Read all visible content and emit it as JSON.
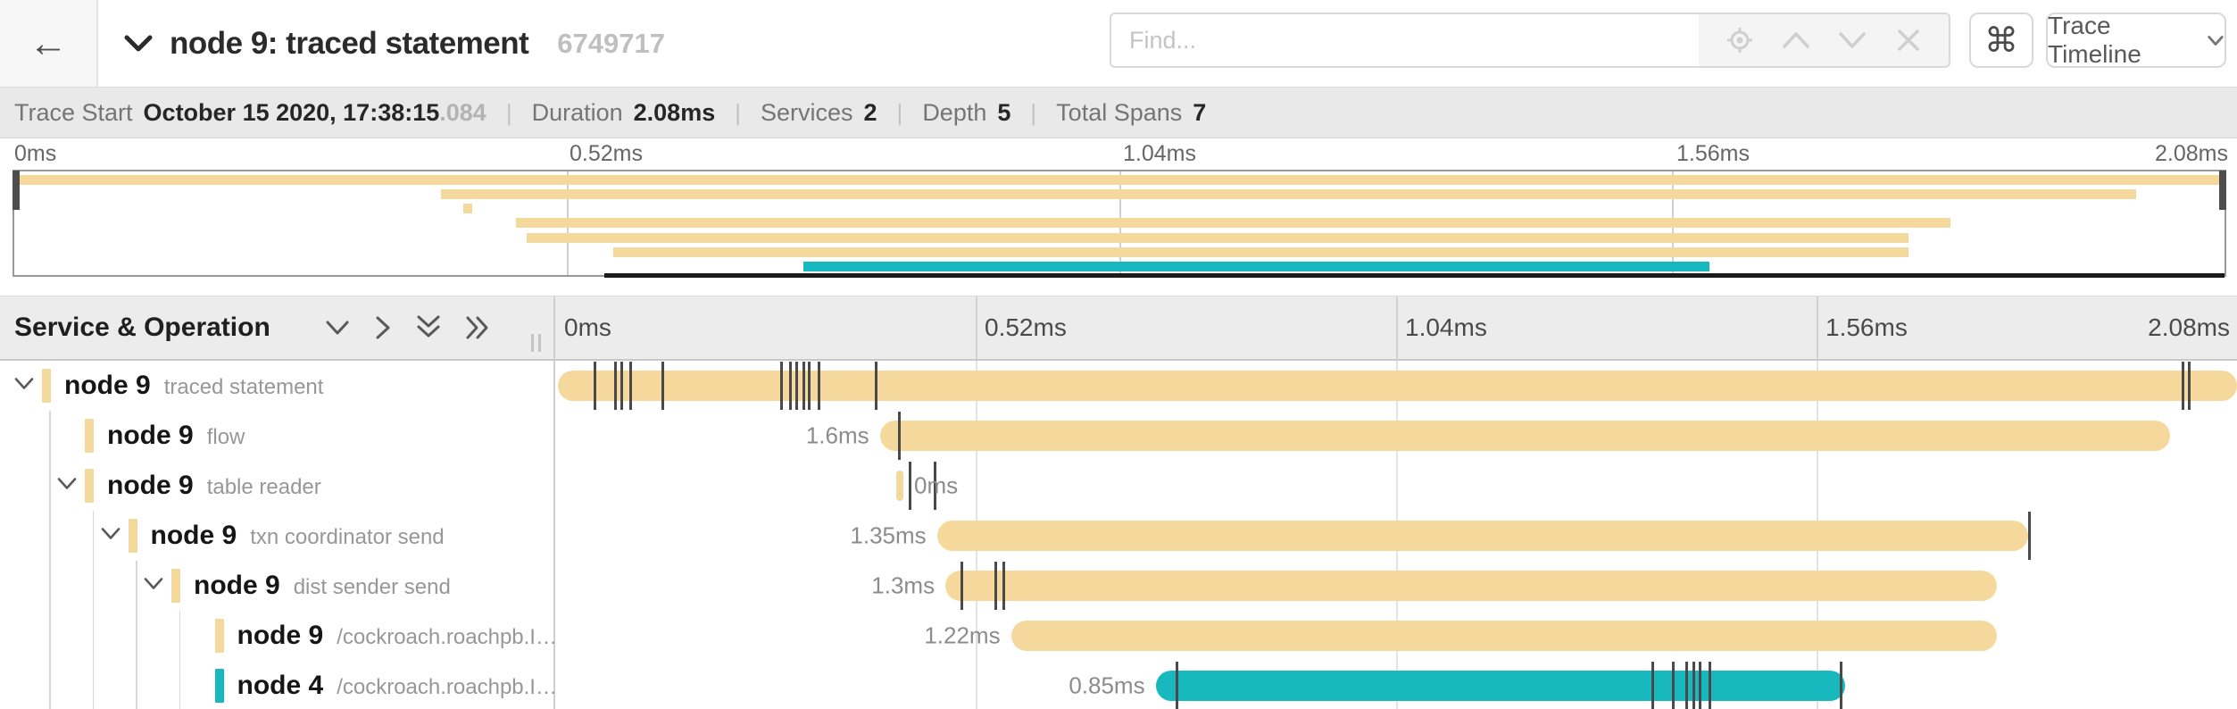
{
  "header": {
    "title": "node 9: traced statement",
    "trace_id_short": "6749717",
    "find_placeholder": "Find...",
    "cmd_shortcut": "⌘",
    "view_selector_label": "Trace Timeline"
  },
  "summary": {
    "items": [
      {
        "label": "Trace Start",
        "value": "October 15 2020, 17:38:15",
        "fraction": ".084"
      },
      {
        "label": "Duration",
        "value": "2.08ms"
      },
      {
        "label": "Services",
        "value": "2"
      },
      {
        "label": "Depth",
        "value": "5"
      },
      {
        "label": "Total Spans",
        "value": "7"
      }
    ]
  },
  "axis": {
    "ticks": [
      "0ms",
      "0.52ms",
      "1.04ms",
      "1.56ms",
      "2.08ms"
    ]
  },
  "colors": {
    "node9_tan": "#F5D89B",
    "node4_teal": "#17B8BE",
    "log_tick": "#4a4a4a"
  },
  "timeline": {
    "left_header": "Service & Operation",
    "header_icons": [
      "collapse-one",
      "expand-one",
      "collapse-all",
      "expand-all"
    ],
    "rows": [
      {
        "service": "node 9",
        "operation": "traced statement",
        "depth": 0,
        "expandable": true,
        "color": "node9_tan",
        "duration_label": "",
        "label_side": "none",
        "start_pct": 0.15,
        "width_pct": 99.85,
        "ticks_pct": [
          2.3,
          3.5,
          3.9,
          4.4,
          6.3,
          13.4,
          13.9,
          14.3,
          14.7,
          15.0,
          15.6,
          19.0,
          96.7,
          97.1
        ]
      },
      {
        "service": "node 9",
        "operation": "flow",
        "depth": 1,
        "expandable": false,
        "color": "node9_tan",
        "duration_label": "1.6ms",
        "label_side": "left",
        "start_pct": 19.3,
        "width_pct": 76.7,
        "ticks_pct": [
          20.4
        ]
      },
      {
        "service": "node 9",
        "operation": "table reader",
        "depth": 1,
        "expandable": true,
        "color": "node9_tan",
        "duration_label": "0ms",
        "label_side": "right",
        "start_pct": 20.3,
        "width_pct": 0.4,
        "ticks_pct": [
          21.0,
          22.5
        ]
      },
      {
        "service": "node 9",
        "operation": "txn coordinator send",
        "depth": 2,
        "expandable": true,
        "color": "node9_tan",
        "duration_label": "1.35ms",
        "label_side": "left",
        "start_pct": 22.7,
        "width_pct": 64.9,
        "ticks_pct": [
          87.6
        ]
      },
      {
        "service": "node 9",
        "operation": "dist sender send",
        "depth": 3,
        "expandable": true,
        "color": "node9_tan",
        "duration_label": "1.3ms",
        "label_side": "left",
        "start_pct": 23.2,
        "width_pct": 62.5,
        "ticks_pct": [
          24.1,
          26.1,
          26.6
        ]
      },
      {
        "service": "node 9",
        "operation": "/cockroach.roachpb.I…",
        "depth": 4,
        "expandable": false,
        "color": "node9_tan",
        "duration_label": "1.22ms",
        "label_side": "left",
        "start_pct": 27.1,
        "width_pct": 58.6,
        "ticks_pct": []
      },
      {
        "service": "node 4",
        "operation": "/cockroach.roachpb.I…",
        "depth": 4,
        "expandable": false,
        "color": "node4_teal",
        "duration_label": "0.85ms",
        "label_side": "left",
        "start_pct": 35.7,
        "width_pct": 41.0,
        "ticks_pct": [
          36.9,
          65.2,
          66.4,
          67.2,
          67.6,
          68.0,
          68.6,
          76.4
        ]
      }
    ]
  },
  "minimap": {
    "view_range_start_pct": 26.7,
    "view_range_end_pct": 100
  }
}
